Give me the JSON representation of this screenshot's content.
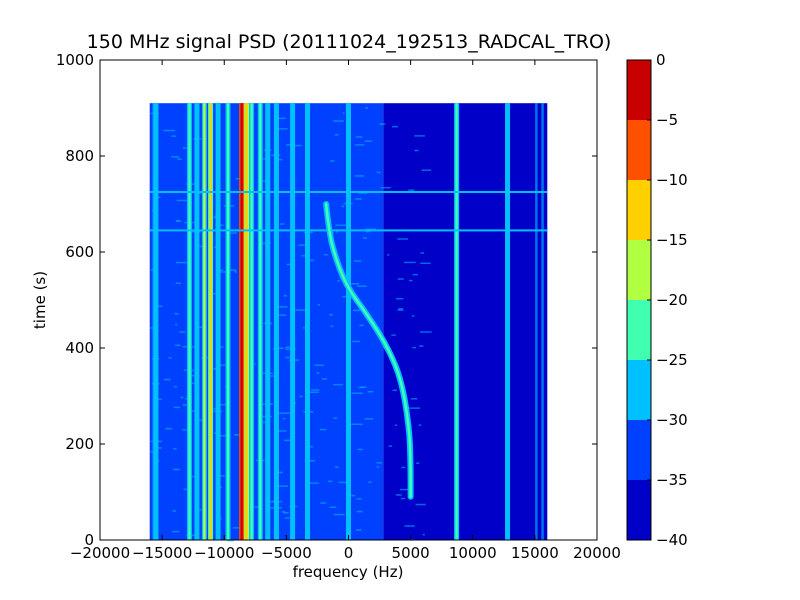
{
  "chart_data": {
    "type": "heatmap",
    "title": "150 MHz signal PSD (20111024_192513_RADCAL_TRO)",
    "xlabel": "frequency (Hz)",
    "ylabel": "time (s)",
    "xlim": [
      -20000,
      20000
    ],
    "ylim": [
      0,
      1000
    ],
    "x_ticks": [
      -20000,
      -15000,
      -10000,
      -5000,
      0,
      5000,
      10000,
      15000,
      20000
    ],
    "x_tick_labels": [
      "−20000",
      "−15000",
      "−10000",
      "−5000",
      "0",
      "5000",
      "10000",
      "15000",
      "20000"
    ],
    "y_ticks": [
      0,
      200,
      400,
      600,
      800,
      1000
    ],
    "y_tick_labels": [
      "0",
      "200",
      "400",
      "600",
      "800",
      "1000"
    ],
    "data_extent": {
      "freq_min": -16000,
      "freq_max": 16000,
      "time_min": 0,
      "time_max": 910
    },
    "background_level": -33,
    "background_level_right": -36,
    "colorbar": {
      "levels": [
        -40,
        -35,
        -30,
        -25,
        -20,
        -15,
        -10,
        -5,
        0
      ],
      "tick_labels": [
        "−40",
        "−35",
        "−30",
        "−25",
        "−20",
        "−15",
        "−10",
        "−5",
        "0"
      ],
      "colors": [
        "#0000c8",
        "#0040ff",
        "#00c0ff",
        "#40ffb0",
        "#b0ff40",
        "#ffd000",
        "#ff5000",
        "#c80000"
      ]
    },
    "vertical_lines": [
      {
        "freq": -15500,
        "level": -30
      },
      {
        "freq": -12800,
        "level": -25
      },
      {
        "freq": -12200,
        "level": -28
      },
      {
        "freq": -11600,
        "level": -18
      },
      {
        "freq": -11100,
        "level": -14
      },
      {
        "freq": -10500,
        "level": -27
      },
      {
        "freq": -9700,
        "level": -22
      },
      {
        "freq": -8600,
        "level": -2
      },
      {
        "freq": -8200,
        "level": -12
      },
      {
        "freq": -7800,
        "level": -25
      },
      {
        "freq": -7100,
        "level": -25
      },
      {
        "freq": -6500,
        "level": -28
      },
      {
        "freq": -5800,
        "level": -28
      },
      {
        "freq": -4500,
        "level": -26
      },
      {
        "freq": -3300,
        "level": -27
      },
      {
        "freq": 0,
        "level": -27
      },
      {
        "freq": 8700,
        "level": -24
      },
      {
        "freq": 12800,
        "level": -26
      }
    ],
    "horizontal_lines": [
      {
        "time": 725,
        "level": -27
      },
      {
        "time": 645,
        "level": -27
      }
    ],
    "doppler_track": {
      "level": -22,
      "points": [
        {
          "freq": -1800,
          "time": 700
        },
        {
          "freq": -1600,
          "time": 650
        },
        {
          "freq": -1200,
          "time": 600
        },
        {
          "freq": -200,
          "time": 530
        },
        {
          "freq": 1500,
          "time": 470
        },
        {
          "freq": 3200,
          "time": 400
        },
        {
          "freq": 4300,
          "time": 330
        },
        {
          "freq": 4900,
          "time": 230
        },
        {
          "freq": 5000,
          "time": 160
        },
        {
          "freq": 5000,
          "time": 90
        }
      ]
    }
  }
}
